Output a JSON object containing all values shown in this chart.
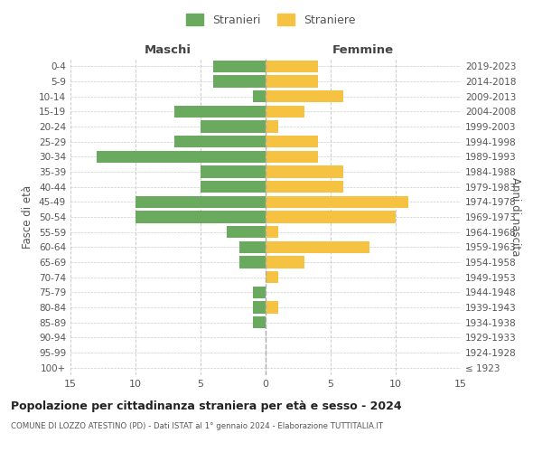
{
  "age_groups": [
    "100+",
    "95-99",
    "90-94",
    "85-89",
    "80-84",
    "75-79",
    "70-74",
    "65-69",
    "60-64",
    "55-59",
    "50-54",
    "45-49",
    "40-44",
    "35-39",
    "30-34",
    "25-29",
    "20-24",
    "15-19",
    "10-14",
    "5-9",
    "0-4"
  ],
  "birth_years": [
    "≤ 1923",
    "1924-1928",
    "1929-1933",
    "1934-1938",
    "1939-1943",
    "1944-1948",
    "1949-1953",
    "1954-1958",
    "1959-1963",
    "1964-1968",
    "1969-1973",
    "1974-1978",
    "1979-1983",
    "1984-1988",
    "1989-1993",
    "1994-1998",
    "1999-2003",
    "2004-2008",
    "2009-2013",
    "2014-2018",
    "2019-2023"
  ],
  "males": [
    0,
    0,
    0,
    1,
    1,
    1,
    0,
    2,
    2,
    3,
    10,
    10,
    5,
    5,
    13,
    7,
    5,
    7,
    1,
    4,
    4
  ],
  "females": [
    0,
    0,
    0,
    0,
    1,
    0,
    1,
    3,
    8,
    1,
    10,
    11,
    6,
    6,
    4,
    4,
    1,
    3,
    6,
    4,
    4
  ],
  "male_color": "#6aaa5e",
  "female_color": "#f5c242",
  "bar_height": 0.8,
  "xlim": 15,
  "title": "Popolazione per cittadinanza straniera per età e sesso - 2024",
  "subtitle": "COMUNE DI LOZZO ATESTINO (PD) - Dati ISTAT al 1° gennaio 2024 - Elaborazione TUTTITALIA.IT",
  "ylabel_left": "Fasce di età",
  "ylabel_right": "Anni di nascita",
  "legend_male": "Stranieri",
  "legend_female": "Straniere",
  "maschi_label": "Maschi",
  "femmine_label": "Femmine",
  "bg_color": "#ffffff",
  "grid_color": "#cccccc",
  "text_color": "#555555"
}
